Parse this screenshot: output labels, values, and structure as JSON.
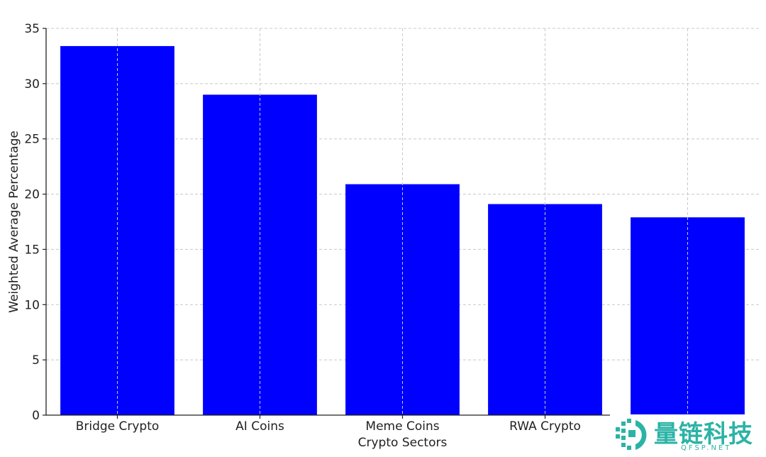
{
  "chart_data": {
    "type": "bar",
    "categories": [
      "Bridge Crypto",
      "AI Coins",
      "Meme Coins",
      "RWA Crypto",
      ""
    ],
    "values": [
      33.4,
      29.0,
      20.9,
      19.1,
      17.9
    ],
    "title": "",
    "xlabel": "Crypto Sectors",
    "ylabel": "Weighted Average Percentage",
    "ylim": [
      0,
      35
    ],
    "yticks": [
      0,
      5,
      10,
      15,
      20,
      25,
      30,
      35
    ],
    "grid": true,
    "bar_color": "#0000ff"
  },
  "watermark": {
    "text": "量链科技",
    "subtext": "QFSP.NET",
    "color": "#2bb3a6"
  }
}
